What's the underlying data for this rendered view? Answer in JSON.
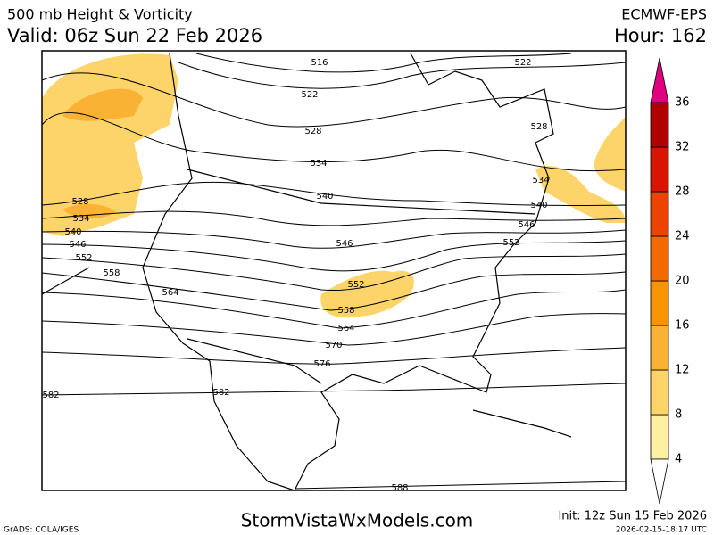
{
  "header": {
    "title": "500 mb Height & Vorticity",
    "valid": "Valid: 06z Sun 22 Feb 2026",
    "model": "ECMWF-EPS",
    "hour": "Hour: 162"
  },
  "contour_labels": [
    "516",
    "522",
    "522",
    "528",
    "534",
    "540",
    "528",
    "534",
    "540",
    "546",
    "552",
    "558",
    "564",
    "546",
    "552",
    "558",
    "564",
    "570",
    "576",
    "582",
    "582",
    "588",
    "528",
    "534",
    "540",
    "546",
    "552"
  ],
  "colorbar": {
    "levels": [
      4,
      8,
      12,
      16,
      20,
      24,
      28,
      32,
      36
    ],
    "colors": [
      "#fdf0a0",
      "#fcd46a",
      "#f9b233",
      "#f79400",
      "#f36b00",
      "#ec4400",
      "#d91400",
      "#b00000"
    ],
    "over_color": "#e0007f"
  },
  "footer": {
    "credit": "GrADS: COLA/IGES",
    "site": "StormVistaWxModels.com",
    "init": "Init: 12z Sun 15 Feb 2026",
    "timestamp": "2026-02-15-18:17 UTC"
  }
}
